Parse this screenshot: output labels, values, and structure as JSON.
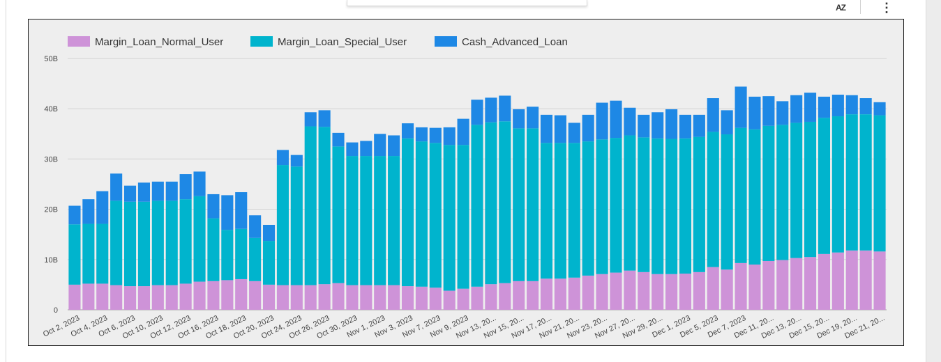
{
  "toolbar": {
    "sort_icon": "sort-az-icon",
    "sort_label": "AZ",
    "more_icon": "more-vert-icon",
    "more_label": "⋮"
  },
  "colors": {
    "normal": "#ce93d8",
    "special": "#00b4cd",
    "cash": "#1e88e5",
    "grid": "#d2d2d2",
    "background": "#eeeeee"
  },
  "chart_data": {
    "type": "bar",
    "stacked": true,
    "legend_position": "top-left",
    "grid": true,
    "ylim": [
      0,
      50
    ],
    "y_ticks": [
      {
        "value": 0,
        "label": "0"
      },
      {
        "value": 10,
        "label": "10B"
      },
      {
        "value": 20,
        "label": "20B"
      },
      {
        "value": 30,
        "label": "30B"
      },
      {
        "value": 40,
        "label": "40B"
      },
      {
        "value": 50,
        "label": "50B"
      }
    ],
    "x_tick_labels": [
      "Oct 2, 2023",
      "Oct 4, 2023",
      "Oct 6, 2023",
      "Oct 10, 2023",
      "Oct 12, 2023",
      "Oct 16, 2023",
      "Oct 18, 2023",
      "Oct 20, 2023",
      "Oct 24, 2023",
      "Oct 26, 2023",
      "Oct 30, 2023",
      "Nov 1, 2023",
      "Nov 3, 2023",
      "Nov 7, 2023",
      "Nov 9, 2023",
      "Nov 13, 20...",
      "Nov 15, 20...",
      "Nov 17, 20...",
      "Nov 21, 20...",
      "Nov 23, 20...",
      "Nov 27, 20...",
      "Nov 29, 20...",
      "Dec 1, 2023",
      "Dec 5, 2023",
      "Dec 7, 2023",
      "Dec 11, 20...",
      "Dec 13, 20...",
      "Dec 15, 20...",
      "Dec 19, 20...",
      "Dec 21, 20..."
    ],
    "series": [
      {
        "name": "Margin_Loan_Normal_User",
        "color": "#ce93d8",
        "values": [
          5.0,
          5.2,
          5.2,
          4.9,
          4.7,
          4.7,
          4.9,
          4.9,
          5.2,
          5.6,
          5.7,
          5.9,
          6.1,
          5.7,
          5.0,
          4.9,
          4.9,
          4.9,
          5.1,
          5.3,
          4.9,
          4.9,
          4.9,
          4.9,
          4.7,
          4.6,
          4.4,
          3.8,
          4.2,
          4.6,
          5.1,
          5.3,
          5.7,
          5.7,
          6.2,
          6.2,
          6.4,
          6.8,
          7.1,
          7.4,
          7.8,
          7.5,
          7.1,
          7.1,
          7.2,
          7.5,
          8.5,
          8.0,
          9.3,
          9.0,
          9.7,
          9.9,
          10.3,
          10.5,
          11.1,
          11.4,
          11.8,
          11.8,
          11.6
        ]
      },
      {
        "name": "Margin_Loan_Special_User",
        "color": "#00b4cd",
        "values": [
          12.0,
          11.9,
          11.9,
          16.8,
          16.8,
          16.8,
          16.8,
          16.8,
          16.8,
          17.0,
          12.5,
          10.0,
          10.0,
          8.6,
          8.7,
          23.9,
          23.6,
          31.6,
          31.3,
          27.2,
          25.7,
          25.7,
          25.7,
          25.7,
          29.4,
          28.9,
          28.8,
          29.0,
          28.6,
          32.2,
          32.2,
          32.2,
          30.4,
          30.4,
          27.0,
          27.0,
          26.8,
          26.7,
          26.8,
          26.8,
          26.9,
          26.8,
          27.0,
          26.9,
          26.9,
          26.9,
          26.9,
          26.9,
          26.9,
          26.9,
          26.9,
          26.9,
          26.9,
          26.9,
          27.1,
          27.1,
          27.1,
          27.1,
          27.1
        ]
      },
      {
        "name": "Cash_Advanced_Loan",
        "color": "#1e88e5",
        "values": [
          3.7,
          4.9,
          6.5,
          5.4,
          3.2,
          3.8,
          3.8,
          3.8,
          5.0,
          4.9,
          4.8,
          6.9,
          7.3,
          4.5,
          3.2,
          3.0,
          2.3,
          2.8,
          3.3,
          2.7,
          2.7,
          3.0,
          4.4,
          4.1,
          3.0,
          2.8,
          3.0,
          3.5,
          5.2,
          5.0,
          4.9,
          5.1,
          3.8,
          4.3,
          5.6,
          5.5,
          4.0,
          5.3,
          7.3,
          7.4,
          5.5,
          4.5,
          5.2,
          5.9,
          4.7,
          4.4,
          6.7,
          4.8,
          8.2,
          6.5,
          5.9,
          4.7,
          5.5,
          5.8,
          4.2,
          4.3,
          3.8,
          3.2,
          2.6
        ]
      }
    ]
  }
}
